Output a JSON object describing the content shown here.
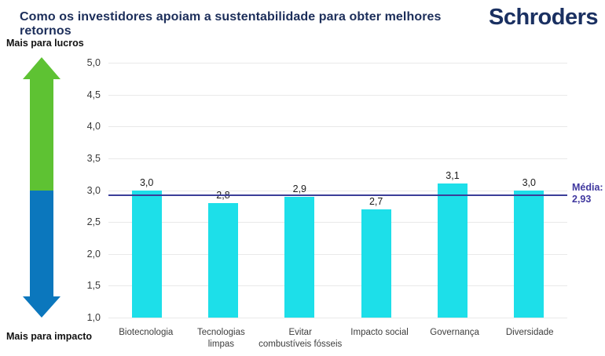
{
  "header": {
    "title": "Como os investidores apoiam a sustentabilidade para obter melhores retornos",
    "logo": "Schroders"
  },
  "axis_arrow": {
    "top_label": "Mais para lucros",
    "bottom_label": "Mais para impacto",
    "up_color": "#5ec233",
    "down_color": "#0b77bd"
  },
  "chart_data": {
    "type": "bar",
    "title": "Como os investidores apoiam a sustentabilidade para obter melhores retornos",
    "categories": [
      "Biotecnologia",
      "Tecnologias\nlimpas",
      "Evitar\ncombustíveis fósseis",
      "Impacto social",
      "Governança",
      "Diversidade"
    ],
    "values": [
      3.0,
      2.8,
      2.9,
      2.7,
      3.1,
      3.0
    ],
    "value_labels": [
      "3,0",
      "2,8",
      "2,9",
      "2,7",
      "3,1",
      "3,0"
    ],
    "ylim": [
      1.0,
      5.0
    ],
    "ytick_step": 0.5,
    "ytick_labels": [
      "5,0",
      "4,5",
      "4,0",
      "3,5",
      "3,0",
      "2,5",
      "2,0",
      "1,5",
      "1,0"
    ],
    "bar_color": "#1ddfe9",
    "grid": true,
    "legend_position": "none",
    "mean_line": {
      "value": 2.93,
      "label_title": "Média:",
      "label_value": "2,93",
      "color": "#3b3e98",
      "label_color": "#40389f"
    }
  }
}
